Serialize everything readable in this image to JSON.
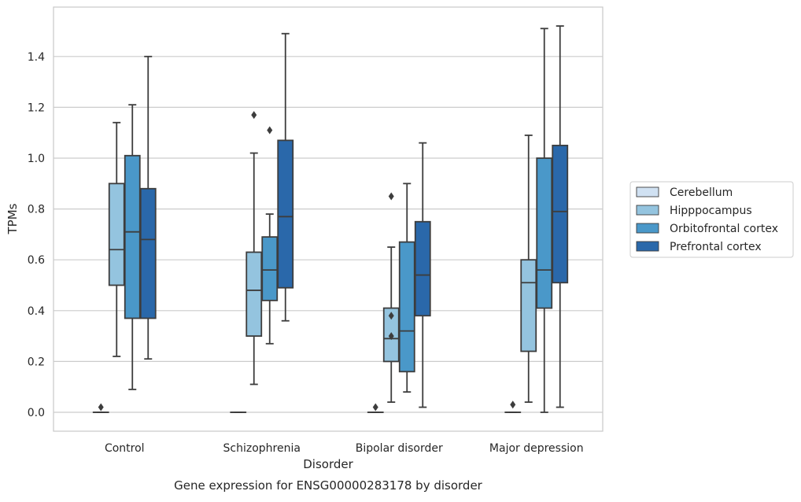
{
  "chart_data": {
    "type": "box",
    "title": "",
    "caption": "Gene expression for ENSG00000283178 by disorder",
    "xlabel": "Disorder",
    "ylabel": "TPMs",
    "ylim": [
      -0.07,
      1.57
    ],
    "yticks": [
      0.0,
      0.2,
      0.4,
      0.6,
      0.8,
      1.0,
      1.2,
      1.4
    ],
    "ytick_labels": [
      "0.0",
      "0.2",
      "0.4",
      "0.6",
      "0.8",
      "1.0",
      "1.2",
      "1.4"
    ],
    "grid": "horizontal",
    "legend_position": "right",
    "categories": [
      "Control",
      "Schizophrenia",
      "Bipolar disorder",
      "Major depression"
    ],
    "series": [
      {
        "name": "Cerebellum",
        "color": "#d0e1f2",
        "boxes": [
          {
            "whisker_low": 0.0,
            "q1": 0.0,
            "median": 0.0,
            "q3": 0.0,
            "whisker_high": 0.0,
            "outliers": [
              0.02
            ]
          },
          {
            "whisker_low": 0.0,
            "q1": 0.0,
            "median": 0.0,
            "q3": 0.0,
            "whisker_high": 0.0,
            "outliers": []
          },
          {
            "whisker_low": 0.0,
            "q1": 0.0,
            "median": 0.0,
            "q3": 0.0,
            "whisker_high": 0.0,
            "outliers": [
              0.02
            ]
          },
          {
            "whisker_low": 0.0,
            "q1": 0.0,
            "median": 0.0,
            "q3": 0.0,
            "whisker_high": 0.0,
            "outliers": [
              0.03
            ]
          }
        ]
      },
      {
        "name": "Hipppocampus",
        "color": "#94c4df",
        "boxes": [
          {
            "whisker_low": 0.22,
            "q1": 0.5,
            "median": 0.64,
            "q3": 0.9,
            "whisker_high": 1.14,
            "outliers": []
          },
          {
            "whisker_low": 0.11,
            "q1": 0.3,
            "median": 0.48,
            "q3": 0.63,
            "whisker_high": 1.02,
            "outliers": [
              1.17
            ]
          },
          {
            "whisker_low": 0.04,
            "q1": 0.2,
            "median": 0.29,
            "q3": 0.41,
            "whisker_high": 0.65,
            "outliers": [
              0.38,
              0.3,
              0.85
            ]
          },
          {
            "whisker_low": 0.04,
            "q1": 0.24,
            "median": 0.51,
            "q3": 0.6,
            "whisker_high": 1.09,
            "outliers": []
          }
        ]
      },
      {
        "name": "Orbitofrontal cortex",
        "color": "#4a98c9",
        "boxes": [
          {
            "whisker_low": 0.09,
            "q1": 0.37,
            "median": 0.71,
            "q3": 1.01,
            "whisker_high": 1.21,
            "outliers": []
          },
          {
            "whisker_low": 0.27,
            "q1": 0.44,
            "median": 0.56,
            "q3": 0.69,
            "whisker_high": 0.78,
            "outliers": [
              1.11
            ]
          },
          {
            "whisker_low": 0.08,
            "q1": 0.16,
            "median": 0.32,
            "q3": 0.67,
            "whisker_high": 0.9,
            "outliers": []
          },
          {
            "whisker_low": 0.0,
            "q1": 0.41,
            "median": 0.56,
            "q3": 1.0,
            "whisker_high": 1.51,
            "outliers": []
          }
        ]
      },
      {
        "name": "Prefrontal cortex",
        "color": "#2a68aa",
        "boxes": [
          {
            "whisker_low": 0.21,
            "q1": 0.37,
            "median": 0.68,
            "q3": 0.88,
            "whisker_high": 1.4,
            "outliers": []
          },
          {
            "whisker_low": 0.36,
            "q1": 0.49,
            "median": 0.77,
            "q3": 1.07,
            "whisker_high": 1.49,
            "outliers": []
          },
          {
            "whisker_low": 0.02,
            "q1": 0.38,
            "median": 0.54,
            "q3": 0.75,
            "whisker_high": 1.06,
            "outliers": []
          },
          {
            "whisker_low": 0.02,
            "q1": 0.51,
            "median": 0.79,
            "q3": 1.05,
            "whisker_high": 1.52,
            "outliers": []
          }
        ]
      }
    ]
  }
}
